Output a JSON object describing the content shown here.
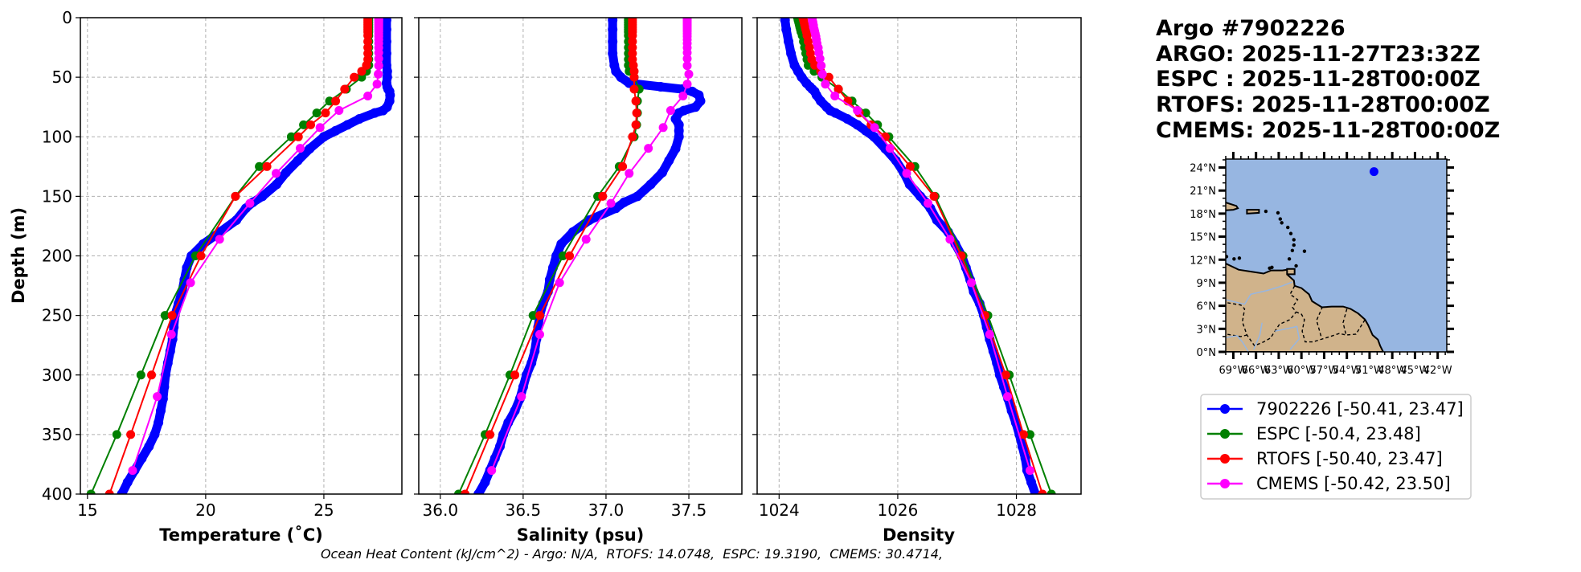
{
  "title_lines": [
    "Argo #7902226",
    "ARGO: 2025-11-27T23:32Z",
    "ESPC : 2025-11-28T00:00Z",
    "RTOFS: 2025-11-28T00:00Z",
    "CMEMS: 2025-11-28T00:00Z"
  ],
  "caption": "Ocean Heat Content (kJ/cm^2) - Argo: N/A,  RTOFS: 14.0748,  ESPC: 19.3190,  CMEMS: 30.4714,",
  "legend": [
    {
      "label": "7902226 [-50.41, 23.47]",
      "color": "#0000ff"
    },
    {
      "label": "ESPC [-50.4, 23.48]",
      "color": "#008000"
    },
    {
      "label": "RTOFS [-50.40, 23.47]",
      "color": "#ff0000"
    },
    {
      "label": "CMEMS [-50.42, 23.50]",
      "color": "#ff00ff"
    }
  ],
  "map": {
    "lon_range": [
      -70,
      -40.8
    ],
    "lat_range": [
      0,
      25.1
    ],
    "lon_ticks": [
      -69,
      -66,
      -63,
      -60,
      -57,
      -54,
      -51,
      -48,
      -45,
      -42
    ],
    "lon_tick_labels": [
      "69°W",
      "66°W",
      "63°W",
      "60°W",
      "57°W",
      "54°W",
      "51°W",
      "48°W",
      "45°W",
      "42°W"
    ],
    "lat_ticks": [
      0,
      3,
      6,
      9,
      12,
      15,
      18,
      21,
      24
    ],
    "lat_tick_labels": [
      "0°N",
      "3°N",
      "6°N",
      "9°N",
      "12°N",
      "15°N",
      "18°N",
      "21°N",
      "24°N"
    ],
    "float_position": {
      "lon": -50.41,
      "lat": 23.47
    },
    "ocean_color": "#97b6e1",
    "land_color": "#d0b38b"
  },
  "chart_data": [
    {
      "type": "line",
      "xlabel": "Temperature (˚C)",
      "ylabel": "Depth (m)",
      "xlim": [
        14.7,
        28.3
      ],
      "ylim": [
        400,
        0
      ],
      "xticks": [
        15,
        20,
        25
      ],
      "xtick_labels": [
        "15",
        "20",
        "25"
      ],
      "yticks": [
        0,
        50,
        100,
        150,
        200,
        250,
        300,
        350,
        400
      ],
      "ytick_labels": [
        "0",
        "50",
        "100",
        "150",
        "200",
        "250",
        "300",
        "350",
        "400"
      ],
      "grid": true,
      "series": [
        {
          "name": "7902226",
          "color": "#0000ff",
          "depth": [
            2,
            10,
            20,
            30,
            40,
            45,
            50,
            55,
            58,
            60,
            62,
            65,
            70,
            75,
            78,
            80,
            85,
            90,
            95,
            100,
            110,
            120,
            130,
            140,
            150,
            155,
            160,
            170,
            180,
            190,
            200,
            210,
            220,
            230,
            240,
            250,
            260,
            270,
            280,
            290,
            300,
            310,
            320,
            330,
            340,
            350,
            360,
            370,
            380,
            390,
            400
          ],
          "values": [
            27.65,
            27.65,
            27.65,
            27.65,
            27.65,
            27.68,
            27.68,
            27.65,
            27.68,
            27.72,
            27.78,
            27.8,
            27.78,
            27.67,
            27.5,
            27.15,
            26.5,
            26.0,
            25.5,
            25.0,
            24.4,
            23.9,
            23.4,
            23.0,
            22.4,
            22.0,
            21.7,
            21.3,
            20.6,
            19.9,
            19.4,
            19.2,
            19.1,
            19.0,
            18.85,
            18.7,
            18.65,
            18.6,
            18.5,
            18.4,
            18.3,
            18.25,
            18.2,
            18.1,
            18.0,
            17.84,
            17.6,
            17.3,
            17.0,
            16.7,
            16.45
          ]
        },
        {
          "name": "ESPC",
          "color": "#008000",
          "depth": [
            0,
            2,
            4,
            6,
            8,
            10,
            12,
            15,
            20,
            25,
            30,
            35,
            40,
            45,
            50,
            60,
            70,
            80,
            90,
            100,
            125,
            150,
            200,
            250,
            300,
            350,
            400
          ],
          "values": [
            26.9,
            26.9,
            26.9,
            26.9,
            26.9,
            26.9,
            26.9,
            26.9,
            26.9,
            26.9,
            26.9,
            26.9,
            26.9,
            26.8,
            26.6,
            25.95,
            25.24,
            24.7,
            24.14,
            23.62,
            22.27,
            21.26,
            19.57,
            18.28,
            17.26,
            16.24,
            15.15
          ]
        },
        {
          "name": "RTOFS",
          "color": "#ff0000",
          "depth": [
            0,
            2,
            4,
            6,
            8,
            10,
            12,
            15,
            20,
            25,
            30,
            35,
            40,
            45,
            50,
            60,
            70,
            80,
            90,
            100,
            125,
            150,
            200,
            250,
            300,
            350,
            400
          ],
          "values": [
            26.86,
            26.86,
            26.86,
            26.86,
            26.86,
            26.86,
            26.86,
            26.86,
            26.86,
            26.86,
            26.86,
            26.86,
            26.8,
            26.6,
            26.28,
            25.88,
            25.5,
            25.07,
            24.44,
            23.92,
            22.59,
            21.26,
            19.8,
            18.58,
            17.71,
            16.83,
            15.93
          ]
        },
        {
          "name": "CMEMS",
          "color": "#ff00ff",
          "depth": [
            0.5,
            1.5,
            2.6,
            3.8,
            5.1,
            6.4,
            7.9,
            9.6,
            11.4,
            13.5,
            15.8,
            18.5,
            21.6,
            25.2,
            29.4,
            34.4,
            40.3,
            47.4,
            55.8,
            65.8,
            77.9,
            92.3,
            109.7,
            130.7,
            155.9,
            186.1,
            222.5,
            266.0,
            318.1,
            380.2
          ],
          "values": [
            27.32,
            27.32,
            27.32,
            27.32,
            27.32,
            27.32,
            27.32,
            27.32,
            27.32,
            27.32,
            27.32,
            27.32,
            27.32,
            27.32,
            27.32,
            27.32,
            27.32,
            27.3,
            27.25,
            26.86,
            25.64,
            24.84,
            24.0,
            22.98,
            21.87,
            20.59,
            19.36,
            18.55,
            17.95,
            16.91
          ]
        }
      ]
    },
    {
      "type": "line",
      "xlabel": "Salinity (psu)",
      "ylabel": "",
      "xlim": [
        35.87,
        37.82
      ],
      "ylim": [
        400,
        0
      ],
      "xticks": [
        36.0,
        36.5,
        37.0,
        37.5
      ],
      "xtick_labels": [
        "36.0",
        "36.5",
        "37.0",
        "37.5"
      ],
      "yticks": [
        0,
        50,
        100,
        150,
        200,
        250,
        300,
        350,
        400
      ],
      "ytick_labels": [],
      "grid": true,
      "series": [
        {
          "name": "7902226",
          "color": "#0000ff",
          "depth": [
            2,
            10,
            20,
            30,
            40,
            45,
            50,
            55,
            58,
            60,
            62,
            65,
            70,
            75,
            78,
            80,
            85,
            90,
            95,
            100,
            110,
            120,
            130,
            140,
            150,
            155,
            160,
            170,
            180,
            190,
            200,
            210,
            220,
            230,
            240,
            250,
            260,
            270,
            280,
            290,
            300,
            310,
            320,
            330,
            340,
            350,
            360,
            370,
            380,
            390,
            400
          ],
          "values": [
            37.04,
            37.04,
            37.04,
            37.04,
            37.05,
            37.06,
            37.09,
            37.14,
            37.33,
            37.46,
            37.52,
            37.56,
            37.57,
            37.54,
            37.47,
            37.44,
            37.42,
            37.44,
            37.44,
            37.44,
            37.42,
            37.38,
            37.34,
            37.27,
            37.19,
            37.11,
            37.06,
            36.9,
            36.8,
            36.73,
            36.7,
            36.68,
            36.66,
            36.65,
            36.62,
            36.6,
            36.59,
            36.58,
            36.57,
            36.55,
            36.52,
            36.5,
            36.48,
            36.45,
            36.41,
            36.38,
            36.36,
            36.33,
            36.3,
            36.27,
            36.23
          ]
        },
        {
          "name": "ESPC",
          "color": "#008000",
          "depth": [
            0,
            2,
            4,
            6,
            8,
            10,
            12,
            15,
            20,
            25,
            30,
            35,
            40,
            45,
            50,
            60,
            70,
            80,
            90,
            100,
            125,
            150,
            200,
            250,
            300,
            350,
            400
          ],
          "values": [
            37.135,
            37.135,
            37.135,
            37.135,
            37.135,
            37.135,
            37.135,
            37.135,
            37.135,
            37.135,
            37.135,
            37.135,
            37.135,
            37.14,
            37.17,
            37.2,
            37.19,
            37.19,
            37.185,
            37.17,
            37.08,
            36.95,
            36.74,
            36.56,
            36.42,
            36.27,
            36.11
          ]
        },
        {
          "name": "RTOFS",
          "color": "#ff0000",
          "depth": [
            0,
            2,
            4,
            6,
            8,
            10,
            12,
            15,
            20,
            25,
            30,
            35,
            40,
            45,
            50,
            60,
            70,
            80,
            90,
            100,
            125,
            150,
            200,
            250,
            300,
            350,
            400
          ],
          "values": [
            37.16,
            37.16,
            37.16,
            37.16,
            37.16,
            37.16,
            37.16,
            37.16,
            37.16,
            37.16,
            37.16,
            37.16,
            37.165,
            37.17,
            37.17,
            37.17,
            37.18,
            37.185,
            37.18,
            37.16,
            37.1,
            36.98,
            36.78,
            36.6,
            36.45,
            36.3,
            36.15
          ]
        },
        {
          "name": "CMEMS",
          "color": "#ff00ff",
          "depth": [
            0.5,
            1.5,
            2.6,
            3.8,
            5.1,
            6.4,
            7.9,
            9.6,
            11.4,
            13.5,
            15.8,
            18.5,
            21.6,
            25.2,
            29.4,
            34.4,
            40.3,
            47.4,
            55.8,
            65.8,
            77.9,
            92.3,
            109.7,
            130.7,
            155.9,
            186.1,
            222.5,
            266.0,
            318.1,
            380.2
          ],
          "values": [
            37.49,
            37.49,
            37.49,
            37.49,
            37.49,
            37.49,
            37.49,
            37.49,
            37.49,
            37.49,
            37.49,
            37.49,
            37.49,
            37.49,
            37.49,
            37.49,
            37.49,
            37.5,
            37.49,
            37.465,
            37.39,
            37.345,
            37.256,
            37.14,
            37.03,
            36.88,
            36.72,
            36.6,
            36.49,
            36.31
          ]
        }
      ]
    },
    {
      "type": "line",
      "xlabel": "Density",
      "ylabel": "",
      "xlim": [
        1023.63,
        1029.09
      ],
      "ylim": [
        400,
        0
      ],
      "xticks": [
        1024,
        1026,
        1028
      ],
      "xtick_labels": [
        "1024",
        "1026",
        "1028"
      ],
      "yticks": [
        0,
        50,
        100,
        150,
        200,
        250,
        300,
        350,
        400
      ],
      "ytick_labels": [],
      "grid": true,
      "series": [
        {
          "name": "7902226",
          "color": "#0000ff",
          "depth": [
            2,
            10,
            20,
            30,
            40,
            45,
            50,
            55,
            58,
            60,
            62,
            65,
            70,
            75,
            78,
            80,
            85,
            90,
            95,
            100,
            110,
            120,
            130,
            140,
            150,
            155,
            160,
            170,
            180,
            190,
            200,
            210,
            220,
            230,
            240,
            250,
            260,
            270,
            280,
            290,
            300,
            310,
            320,
            330,
            340,
            350,
            360,
            370,
            380,
            390,
            400
          ],
          "values": [
            1024.1,
            1024.12,
            1024.16,
            1024.2,
            1024.26,
            1024.32,
            1024.38,
            1024.46,
            1024.52,
            1024.56,
            1024.6,
            1024.63,
            1024.7,
            1024.8,
            1024.86,
            1024.95,
            1025.15,
            1025.32,
            1025.46,
            1025.6,
            1025.79,
            1025.97,
            1026.1,
            1026.2,
            1026.38,
            1026.47,
            1026.55,
            1026.66,
            1026.85,
            1026.97,
            1027.08,
            1027.15,
            1027.22,
            1027.28,
            1027.38,
            1027.45,
            1027.5,
            1027.55,
            1027.61,
            1027.67,
            1027.72,
            1027.79,
            1027.86,
            1027.92,
            1027.99,
            1028.05,
            1028.1,
            1028.15,
            1028.18,
            1028.25,
            1028.32
          ]
        },
        {
          "name": "ESPC",
          "color": "#008000",
          "depth": [
            0,
            2,
            4,
            6,
            8,
            10,
            12,
            15,
            20,
            25,
            30,
            35,
            40,
            45,
            50,
            60,
            70,
            80,
            90,
            100,
            125,
            150,
            200,
            250,
            300,
            350,
            400
          ],
          "values": [
            1024.31,
            1024.32,
            1024.33,
            1024.34,
            1024.35,
            1024.36,
            1024.37,
            1024.39,
            1024.41,
            1024.43,
            1024.45,
            1024.47,
            1024.49,
            1024.59,
            1024.72,
            1025.0,
            1025.23,
            1025.46,
            1025.66,
            1025.85,
            1026.29,
            1026.63,
            1027.1,
            1027.52,
            1027.88,
            1028.23,
            1028.59
          ]
        },
        {
          "name": "RTOFS",
          "color": "#ff0000",
          "depth": [
            0,
            2,
            4,
            6,
            8,
            10,
            12,
            15,
            20,
            25,
            30,
            35,
            40,
            45,
            50,
            60,
            70,
            80,
            90,
            100,
            125,
            150,
            200,
            250,
            300,
            350,
            400
          ],
          "values": [
            1024.4,
            1024.41,
            1024.42,
            1024.43,
            1024.44,
            1024.45,
            1024.46,
            1024.47,
            1024.49,
            1024.51,
            1024.53,
            1024.55,
            1024.6,
            1024.7,
            1024.84,
            1025.0,
            1025.16,
            1025.35,
            1025.55,
            1025.79,
            1026.21,
            1026.61,
            1027.07,
            1027.47,
            1027.82,
            1028.12,
            1028.44
          ]
        },
        {
          "name": "CMEMS",
          "color": "#ff00ff",
          "depth": [
            0.5,
            1.5,
            2.6,
            3.8,
            5.1,
            6.4,
            7.9,
            9.6,
            11.4,
            13.5,
            15.8,
            18.5,
            21.6,
            25.2,
            29.4,
            34.4,
            40.3,
            47.4,
            55.8,
            65.8,
            77.9,
            92.3,
            109.7,
            130.7,
            155.9,
            186.1,
            222.5,
            266.0,
            318.1,
            380.2
          ],
          "values": [
            1024.56,
            1024.56,
            1024.56,
            1024.57,
            1024.57,
            1024.58,
            1024.58,
            1024.59,
            1024.6,
            1024.61,
            1024.62,
            1024.63,
            1024.64,
            1024.66,
            1024.67,
            1024.69,
            1024.71,
            1024.73,
            1024.78,
            1024.94,
            1025.32,
            1025.61,
            1025.87,
            1026.15,
            1026.51,
            1026.88,
            1027.24,
            1027.55,
            1027.85,
            1028.23
          ]
        }
      ]
    }
  ]
}
